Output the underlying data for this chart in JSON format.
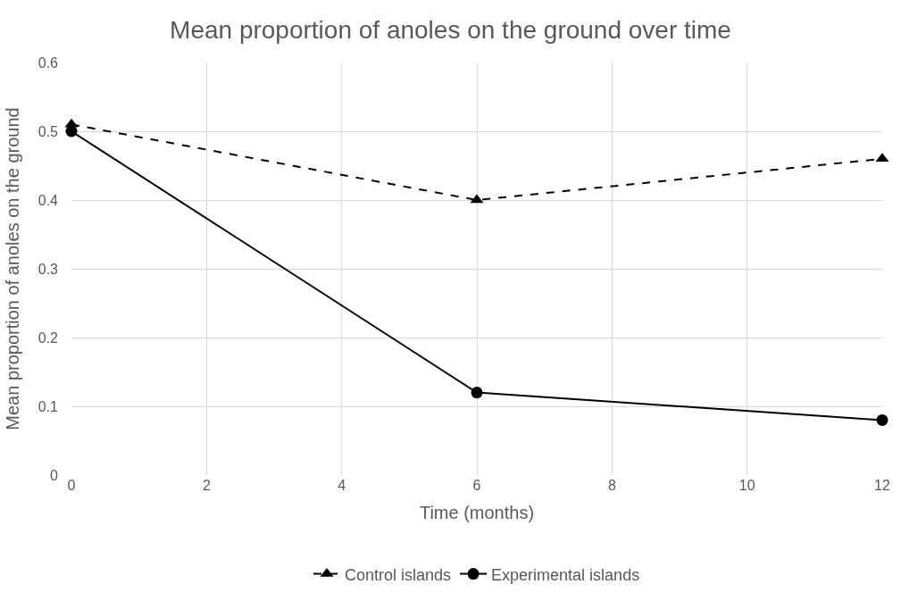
{
  "chart_data": {
    "type": "line",
    "title": "Mean proportion of anoles on the ground over time",
    "xlabel": "Time (months)",
    "ylabel": "Mean proportion of anoles on the ground",
    "x": [
      0,
      6,
      12
    ],
    "series": [
      {
        "name": "Control islands",
        "color": "#000000",
        "values": [
          0.51,
          0.4,
          0.46
        ],
        "marker": "triangle",
        "line_style": "dashed"
      },
      {
        "name": "Experimental islands",
        "color": "#000000",
        "values": [
          0.5,
          0.12,
          0.08
        ],
        "marker": "circle",
        "line_style": "solid"
      }
    ],
    "xlim": [
      0,
      12
    ],
    "xticks": [
      0,
      2,
      4,
      6,
      8,
      10,
      12
    ],
    "ylim": [
      0,
      0.6
    ],
    "yticks": [
      0,
      0.1,
      0.2,
      0.3,
      0.4,
      0.5,
      0.6
    ],
    "grid": true,
    "legend": "bottom"
  }
}
